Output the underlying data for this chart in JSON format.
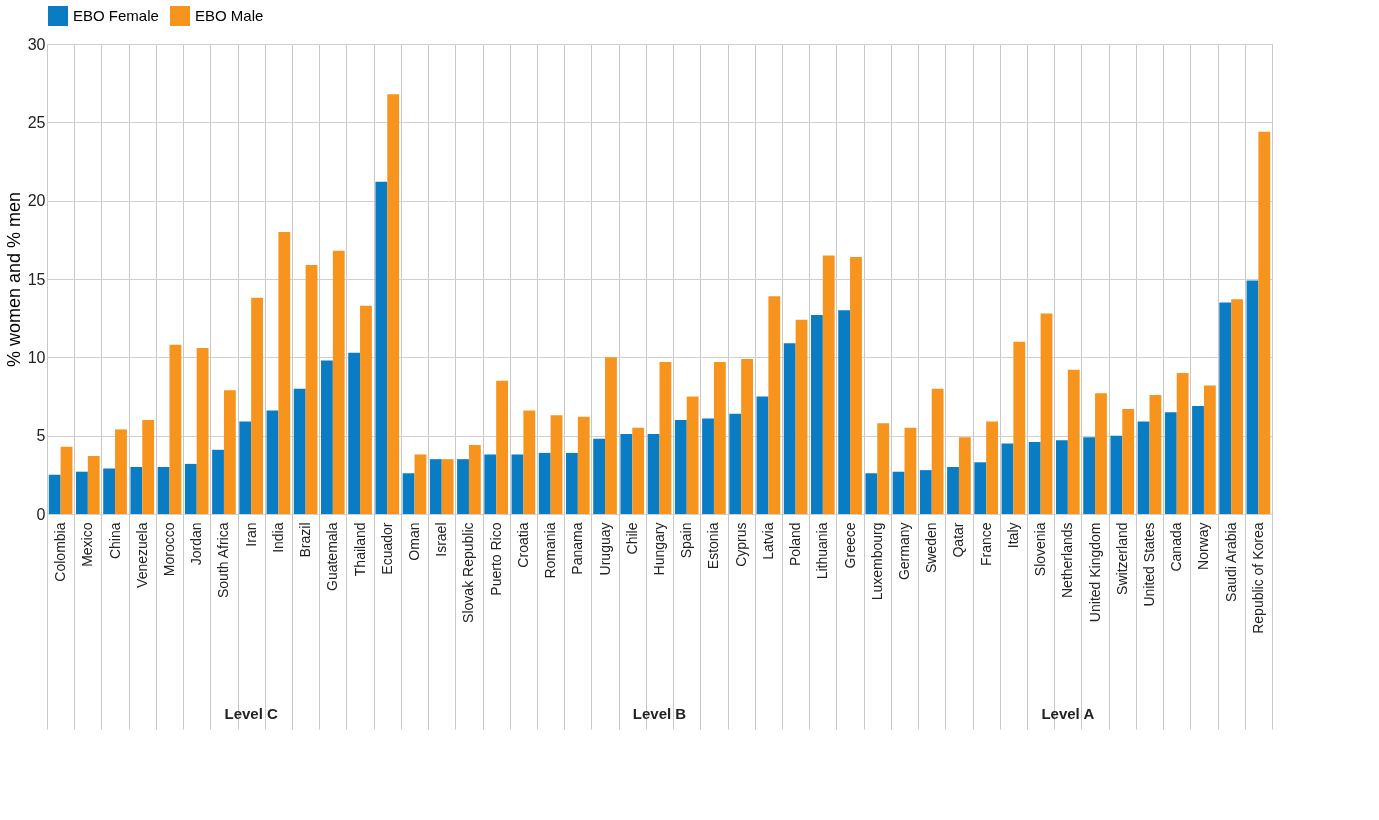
{
  "chart_data": {
    "type": "bar",
    "ylabel": "% women and % men",
    "categories": [
      "Colombia",
      "Mexico",
      "China",
      "Venezuela",
      "Morocco",
      "Jordan",
      "South Africa",
      "Iran",
      "India",
      "Brazil",
      "Guatemala",
      "Thailand",
      "Ecuador",
      "Oman",
      "Israel",
      "Slovak Republic",
      "Puerto Rico",
      "Croatia",
      "Romania",
      "Panama",
      "Uruguay",
      "Chile",
      "Hungary",
      "Spain",
      "Estonia",
      "Cyprus",
      "Latvia",
      "Poland",
      "Lithuania",
      "Greece",
      "Luxembourg",
      "Germany",
      "Sweden",
      "Qatar",
      "France",
      "Italy",
      "Slovenia",
      "Netherlands",
      "United Kingdom",
      "Switzerland",
      "United States",
      "Canada",
      "Norway",
      "Saudi Arabia",
      "Republic of Korea"
    ],
    "series": [
      {
        "name": "EBO Female",
        "color": "#0a7cc4",
        "values": [
          2.5,
          2.7,
          2.9,
          3.0,
          3.0,
          3.2,
          4.1,
          5.9,
          6.6,
          8.0,
          9.8,
          10.3,
          21.2,
          2.6,
          3.5,
          3.5,
          3.8,
          3.8,
          3.9,
          3.9,
          4.8,
          5.1,
          5.1,
          6.0,
          6.1,
          6.4,
          7.5,
          10.9,
          12.7,
          13.0,
          2.6,
          2.7,
          2.8,
          3.0,
          3.3,
          4.5,
          4.6,
          4.7,
          4.9,
          5.0,
          5.9,
          6.5,
          6.9,
          13.5,
          14.9
        ]
      },
      {
        "name": "EBO Male",
        "color": "#f7941d",
        "values": [
          4.3,
          3.7,
          5.4,
          6.0,
          10.8,
          10.6,
          7.9,
          13.8,
          18.0,
          15.9,
          16.8,
          13.3,
          26.8,
          3.8,
          3.5,
          4.4,
          8.5,
          6.6,
          6.3,
          6.2,
          10.0,
          5.5,
          9.7,
          7.5,
          9.7,
          9.9,
          13.9,
          12.4,
          16.5,
          16.4,
          5.8,
          5.5,
          8.0,
          4.9,
          5.9,
          11.0,
          12.8,
          9.2,
          7.7,
          6.7,
          7.6,
          9.0,
          8.2,
          13.7,
          24.4
        ]
      }
    ],
    "ylim": [
      0,
      30
    ],
    "yticks": [
      0,
      5,
      10,
      15,
      20,
      25,
      30
    ],
    "grid": true,
    "legend": "top",
    "annotations": [
      "Level C",
      "Level B",
      "Level A"
    ]
  }
}
